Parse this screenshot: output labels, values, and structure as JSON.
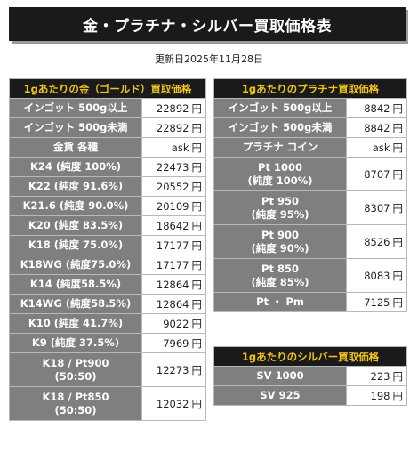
{
  "title": "金・プラチナ・シルバー買取価格表",
  "updated": "更新日2025年11月28日",
  "unit": "円",
  "gold": {
    "header": "1gあたりの金（ゴールド）買取価格",
    "rows": [
      {
        "label": "インゴット 500g以上",
        "value": "22892"
      },
      {
        "label": "インゴット 500g未満",
        "value": "22892"
      },
      {
        "label": "金貨 各種",
        "value": "ask"
      },
      {
        "label": "K24 (純度 100%)",
        "value": "22473"
      },
      {
        "label": "K22 (純度 91.6%)",
        "value": "20552"
      },
      {
        "label": "K21.6 (純度 90.0%)",
        "value": "20109"
      },
      {
        "label": "K20 (純度 83.5%)",
        "value": "18642"
      },
      {
        "label": "K18 (純度 75.0%)",
        "value": "17177"
      },
      {
        "label": "K18WG (純度75.0%)",
        "value": "17177"
      },
      {
        "label": "K14 (純度58.5%)",
        "value": "12864"
      },
      {
        "label": "K14WG (純度58.5%)",
        "value": "12864"
      },
      {
        "label": "K10 (純度 41.7%)",
        "value": "9022"
      },
      {
        "label": "K9 (純度 37.5%)",
        "value": "7969"
      },
      {
        "label": "K18 / Pt900",
        "label2": "(50:50)",
        "value": "12273"
      },
      {
        "label": "K18 / Pt850",
        "label2": "(50:50)",
        "value": "12032"
      }
    ]
  },
  "platinum": {
    "header": "1gあたりのプラチナ買取価格",
    "rows": [
      {
        "label": "インゴット 500g以上",
        "value": "8842"
      },
      {
        "label": "インゴット 500g未満",
        "value": "8842"
      },
      {
        "label": "プラチナ コイン",
        "value": "ask"
      },
      {
        "label": "Pt 1000",
        "label2": "(純度 100%)",
        "value": "8707"
      },
      {
        "label": "Pt 950",
        "label2": "(純度 95%)",
        "value": "8307"
      },
      {
        "label": "Pt 900",
        "label2": "(純度 90%)",
        "value": "8526"
      },
      {
        "label": "Pt 850",
        "label2": "(純度 85%)",
        "value": "8083"
      },
      {
        "label": "Pt ・ Pm",
        "value": "7125"
      }
    ]
  },
  "silver": {
    "header": "1gあたりのシルバー買取価格",
    "rows": [
      {
        "label": "SV 1000",
        "value": "223"
      },
      {
        "label": "SV 925",
        "value": "198"
      }
    ]
  }
}
